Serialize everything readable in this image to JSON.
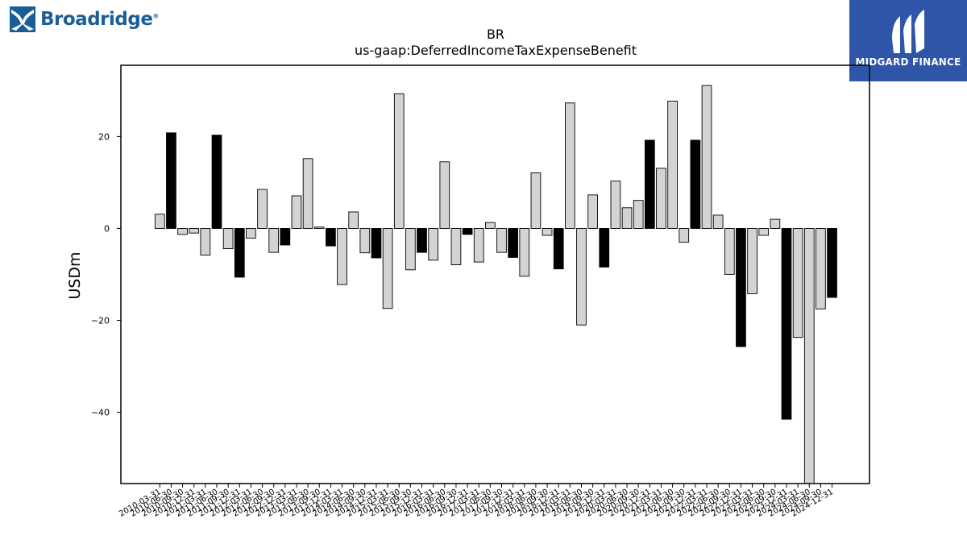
{
  "logos": {
    "left": {
      "name": "Broadridge",
      "mark": "broadridge-logo-icon"
    },
    "right": {
      "name": "MIDGARD FINANCE",
      "mark": "midgard-logo-icon",
      "color": "#2f55a8"
    }
  },
  "chart_data": {
    "type": "bar",
    "title": "BR",
    "subtitle": "us-gaap:DeferredIncomeTaxExpenseBenefit",
    "xlabel": "",
    "ylabel": "USDm",
    "ylim": [
      -55.5,
      35.5
    ],
    "yticks": [
      -40,
      -20,
      0,
      20
    ],
    "grid": false,
    "colors": {
      "quarter": "#d3d3d3",
      "fiscal_year_end": "#000000",
      "edge": "#000000"
    },
    "categories": [
      "2010-03-31",
      "2010-06-30",
      "2010-09-30",
      "2010-12-31",
      "2011-03-31",
      "2011-06-30",
      "2011-09-30",
      "2011-12-31",
      "2012-03-31",
      "2012-06-30",
      "2012-09-30",
      "2012-12-31",
      "2013-03-31",
      "2013-06-30",
      "2013-09-30",
      "2013-12-31",
      "2014-03-31",
      "2014-06-30",
      "2014-09-30",
      "2014-12-31",
      "2015-03-31",
      "2015-06-30",
      "2015-09-30",
      "2015-12-31",
      "2016-03-31",
      "2016-06-30",
      "2016-09-30",
      "2016-12-31",
      "2017-03-31",
      "2017-06-30",
      "2017-09-30",
      "2017-12-31",
      "2018-03-31",
      "2018-06-30",
      "2018-09-30",
      "2018-12-31",
      "2019-03-31",
      "2019-06-30",
      "2019-09-30",
      "2019-12-31",
      "2020-03-31",
      "2020-06-30",
      "2020-09-30",
      "2020-12-31",
      "2021-03-31",
      "2021-06-30",
      "2021-09-30",
      "2021-12-31",
      "2022-03-31",
      "2022-06-30",
      "2022-09-30",
      "2022-12-31",
      "2023-03-31",
      "2023-06-30",
      "2023-09-30",
      "2023-12-31",
      "2024-03-31",
      "2024-06-30",
      "2024-09-30",
      "2024-12-31"
    ],
    "values": [
      3.1,
      20.8,
      -1.3,
      -1.0,
      -5.8,
      20.3,
      -4.4,
      -10.6,
      -2.1,
      8.5,
      -5.2,
      -3.6,
      7.1,
      15.2,
      0.3,
      -3.8,
      -12.2,
      3.6,
      -5.3,
      -6.4,
      -17.4,
      29.3,
      -9.0,
      -5.2,
      -6.9,
      14.5,
      -7.9,
      -1.3,
      -7.3,
      1.3,
      -5.2,
      -6.3,
      -10.4,
      12.1,
      -1.5,
      -8.8,
      27.3,
      -21.0,
      7.3,
      -8.4,
      10.3,
      4.5,
      6.1,
      19.2,
      13.1,
      27.7,
      -3.0,
      19.2,
      31.1,
      2.9,
      -10.0,
      -25.7,
      -14.2,
      -1.5,
      2.0,
      -41.5,
      -23.7,
      -57.8,
      -17.5,
      -15.0
    ],
    "fiscal_year_end": [
      false,
      true,
      false,
      false,
      false,
      true,
      false,
      true,
      false,
      false,
      false,
      true,
      false,
      false,
      false,
      true,
      false,
      false,
      false,
      true,
      false,
      false,
      false,
      true,
      false,
      false,
      false,
      true,
      false,
      false,
      false,
      true,
      false,
      false,
      false,
      true,
      false,
      false,
      false,
      true,
      false,
      false,
      false,
      true,
      false,
      false,
      false,
      true,
      false,
      false,
      false,
      true,
      false,
      false,
      false,
      true,
      false,
      false,
      false,
      true
    ]
  }
}
